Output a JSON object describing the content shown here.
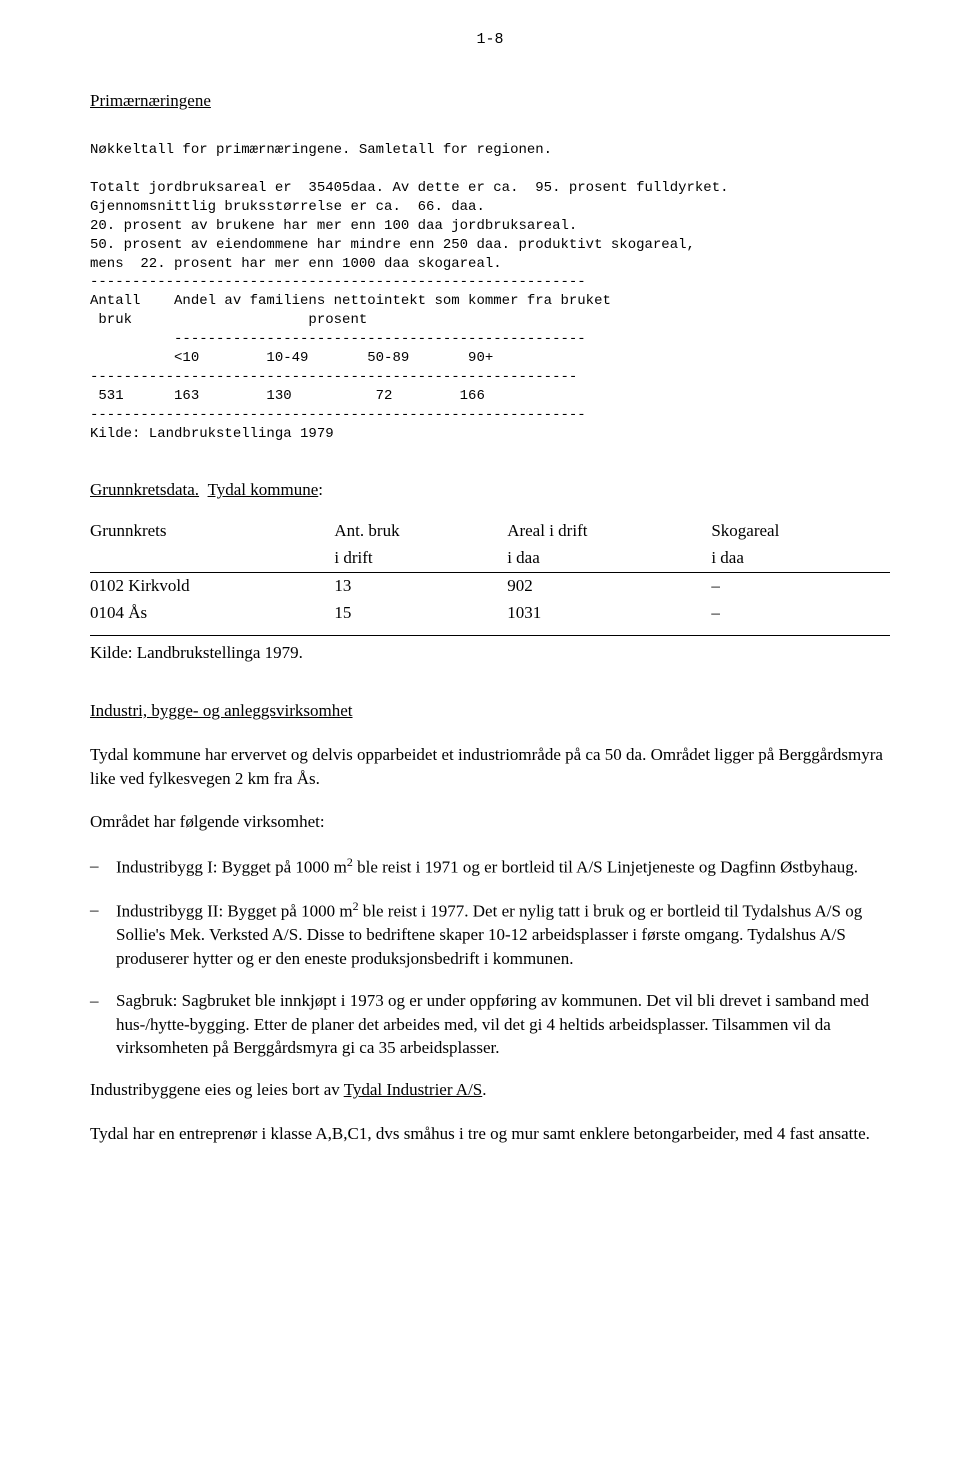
{
  "page_number": "1-8",
  "section1_title": "Primærnæringene",
  "mono": {
    "l1": "Nøkkeltall for primærnæringene. Samletall for regionen.",
    "l2": "Totalt jordbruksareal er  35405daa. Av dette er ca.  95. prosent fulldyrket.",
    "l3": "Gjennomsnittlig bruksstørrelse er ca.  66. daa.",
    "l4": "20. prosent av brukene har mer enn 100 daa jordbruksareal.",
    "l5": "50. prosent av eiendommene har mindre enn 250 daa. produktivt skogareal,",
    "l6": "mens  22. prosent har mer enn 1000 daa skogareal.",
    "dash1": "-----------------------------------------------------------",
    "l7": "Antall    Andel av familiens nettointekt som kommer fra bruket",
    "l8": " bruk                     prosent",
    "dash2": "          -------------------------------------------------",
    "l9": "          <10        10-49       50-89       90+",
    "dash3": "----------------------------------------------------------",
    "l10": " 531      163        130          72        166",
    "dash4": "-----------------------------------------------------------",
    "l11": "Kilde: Landbrukstellinga 1979"
  },
  "sub_title": "Grunnkretsdata.  Tydal kommune:",
  "table": {
    "h1": "Grunnkrets",
    "h2a": "Ant. bruk",
    "h2b": "i drift",
    "h3a": "Areal i drift",
    "h3b": "i daa",
    "h4a": "Skogareal",
    "h4b": "i daa",
    "r1c1": "0102 Kirkvold",
    "r1c2": "13",
    "r1c3": "902",
    "r1c4": "–",
    "r2c1": "0104 Ås",
    "r2c2": "15",
    "r2c3": "1031",
    "r2c4": "–"
  },
  "source2": "Kilde: Landbrukstellinga 1979.",
  "section2_title": "Industri, bygge- og anleggsvirksomhet",
  "p1": "Tydal kommune har ervervet og delvis opparbeidet et industriområde på ca 50 da.  Området ligger på Berggårdsmyra like ved fylkesvegen 2 km fra Ås.",
  "p2": "Området har følgende virksomhet:",
  "b1a": "Industribygg I: Bygget på 1000 m",
  "b1b": " ble reist i 1971 og er bortleid til A/S Linjetjeneste og Dagfinn Østbyhaug.",
  "b2a": "Industribygg II: Bygget på 1000 m",
  "b2b": " ble reist i 1977.  Det er nylig tatt i bruk og er bortleid til Tydalshus A/S og Sollie's Mek. Verksted A/S.  Disse to bedriftene skaper 10-12 arbeidsplasser i første omgang.  Tydalshus A/S produserer hytter og er den eneste produksjonsbedrift i kommunen.",
  "b3": "Sagbruk: Sagbruket ble innkjøpt i 1973 og er under oppføring av kommunen.  Det vil bli drevet i samband med hus-/hytte-bygging. Etter de planer det arbeides med, vil det gi 4 heltids arbeidsplasser.  Tilsammen vil da virksomheten på Berggårdsmyra gi ca 35 arbeidsplasser.",
  "p3a": "Industribyggene eies og leies bort av ",
  "p3u": "Tydal Industrier A/S",
  "p3b": ".",
  "p4": "Tydal har en entreprenør i klasse A,B,C1, dvs småhus i tre og mur samt enklere betongarbeider, med 4 fast ansatte.",
  "sup2": "2"
}
